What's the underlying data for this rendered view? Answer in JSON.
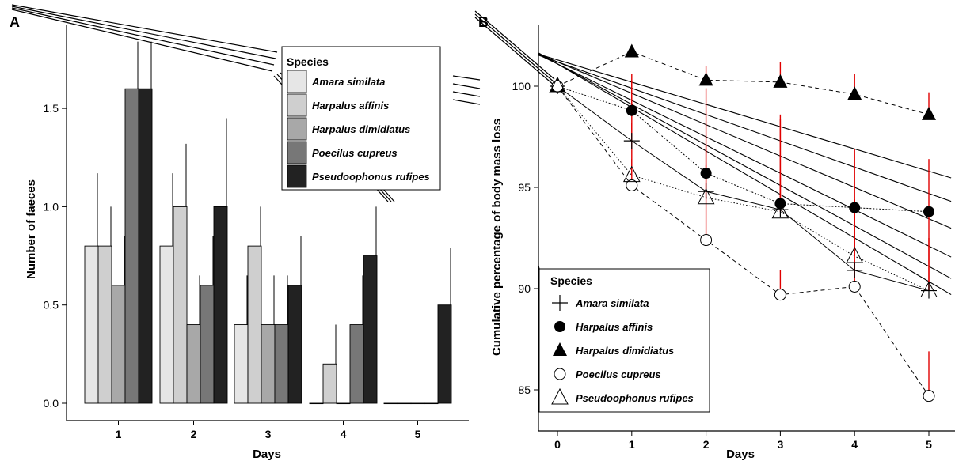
{
  "figure": {
    "panel_a_label": "A",
    "panel_b_label": "B"
  },
  "chart_data": [
    {
      "type": "bar",
      "panel": "A",
      "xlabel": "Days",
      "ylabel": "Number of faeces",
      "categories": [
        "1",
        "2",
        "3",
        "4",
        "5"
      ],
      "ylim": [
        0,
        1.9
      ],
      "yticks": [
        "0.0",
        "0.5",
        "1.0",
        "1.5"
      ],
      "legend": {
        "title": "Species",
        "position": "top-right"
      },
      "series": [
        {
          "name": "Amara similata",
          "color": "#e6e6e6",
          "values": [
            0.8,
            0.8,
            0.4,
            0.0,
            0.0
          ],
          "errors": [
            0.37,
            0.37,
            0.25,
            0.0,
            0.0
          ]
        },
        {
          "name": "Harpalus affinis",
          "color": "#cfcfcf",
          "values": [
            0.8,
            1.0,
            0.8,
            0.2,
            0.0
          ],
          "errors": [
            0.2,
            0.32,
            0.2,
            0.2,
            0.0
          ]
        },
        {
          "name": "Harpalus dimidiatus",
          "color": "#a8a8a8",
          "values": [
            0.6,
            0.4,
            0.4,
            0.0,
            0.0
          ],
          "errors": [
            0.25,
            0.25,
            0.25,
            0.0,
            0.0
          ]
        },
        {
          "name": "Poecilus cupreus",
          "color": "#777777",
          "values": [
            1.6,
            0.6,
            0.4,
            0.4,
            0.0
          ],
          "errors": [
            0.24,
            0.25,
            0.25,
            0.25,
            0.0
          ]
        },
        {
          "name": "Pseudoophonus rufipes",
          "color": "#222222",
          "values": [
            1.6,
            1.0,
            0.6,
            0.75,
            0.5
          ],
          "errors": [
            0.24,
            0.45,
            0.25,
            0.25,
            0.29
          ]
        }
      ]
    },
    {
      "type": "line",
      "panel": "B",
      "xlabel": "Days",
      "ylabel": "Cumulative percentage of body mass loss",
      "x": [
        0,
        1,
        2,
        3,
        4,
        5
      ],
      "xlim": [
        -0.25,
        5.3
      ],
      "ylim": [
        83.8,
        103.2
      ],
      "yticks": [
        85,
        90,
        95,
        100
      ],
      "legend": {
        "title": "Species",
        "position": "bottom-left"
      },
      "regression_lines": [
        [
          101.1,
          -2.15
        ],
        [
          101.1,
          -2.0
        ],
        [
          101.1,
          -1.8
        ],
        [
          101.2,
          -1.55
        ],
        [
          101.2,
          -1.3
        ],
        [
          101.3,
          -1.1
        ]
      ],
      "series": [
        {
          "name": "Amara similata",
          "marker": "plus",
          "line": "solid",
          "values": [
            100.0,
            97.3,
            94.8,
            93.9,
            90.9,
            89.9
          ],
          "errors": [
            0.3,
            3.0,
            1.3,
            1.7,
            3.5,
            4.1
          ]
        },
        {
          "name": "Harpalus affinis",
          "marker": "filled-circle",
          "line": "dotted-dense",
          "values": [
            100.0,
            98.8,
            95.7,
            94.2,
            94.0,
            93.8
          ],
          "errors": [
            0.3,
            1.8,
            4.2,
            4.4,
            2.9,
            2.6
          ]
        },
        {
          "name": "Harpalus dimidiatus",
          "marker": "filled-triangle",
          "line": "dashed",
          "values": [
            100.0,
            101.7,
            100.3,
            100.2,
            99.6,
            98.6
          ],
          "errors": [
            0.3,
            0.3,
            0.7,
            1.0,
            1.0,
            1.1
          ]
        },
        {
          "name": "Poecilus cupreus",
          "marker": "open-circle",
          "line": "dashed",
          "values": [
            100.0,
            95.1,
            92.4,
            89.7,
            90.1,
            84.7
          ],
          "errors": [
            0.3,
            1.3,
            2.8,
            1.2,
            1.3,
            2.2
          ]
        },
        {
          "name": "Pseudoophonus rufipes",
          "marker": "open-triangle",
          "line": "dotted",
          "values": [
            100.0,
            95.6,
            94.5,
            93.8,
            91.6,
            89.9
          ],
          "errors": [
            0.3,
            2.6,
            2.6,
            4.6,
            2.6,
            2.6
          ]
        }
      ]
    }
  ]
}
